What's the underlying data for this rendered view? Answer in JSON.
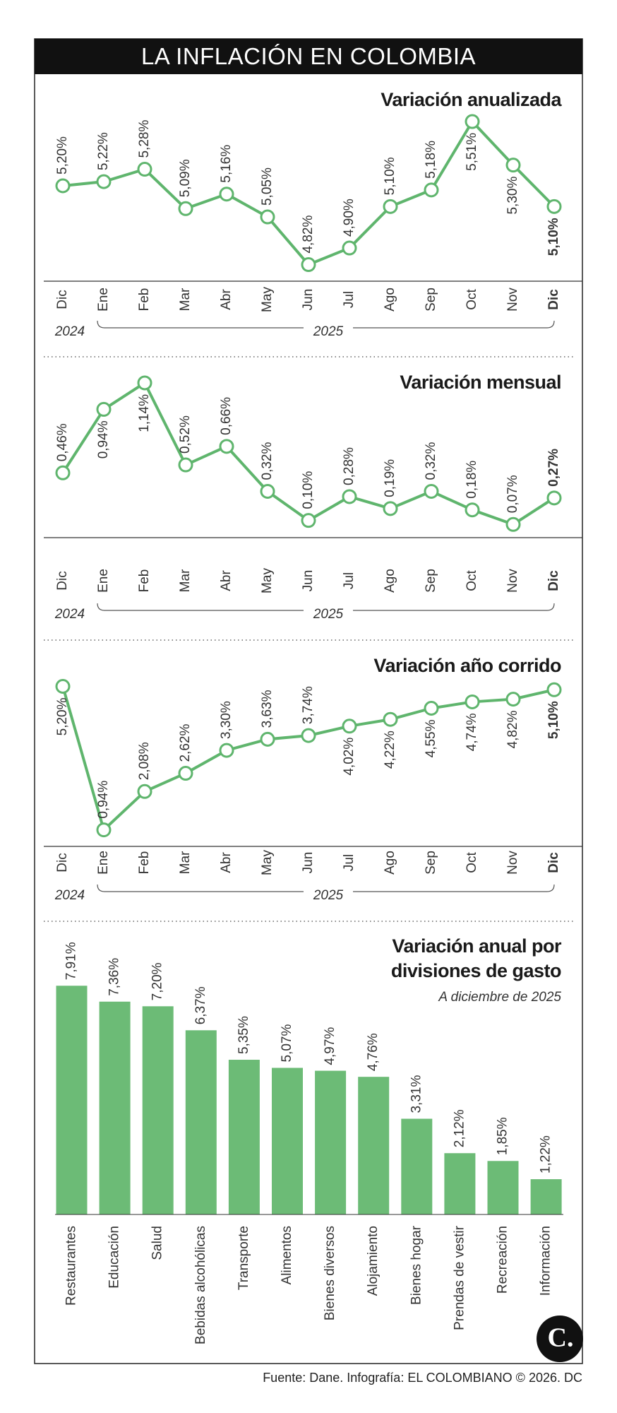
{
  "header": {
    "title": "LA INFLACIÓN EN COLOMBIA"
  },
  "chart_data": [
    {
      "type": "line",
      "title": "Variación anualizada",
      "categories": [
        "Dic",
        "Ene",
        "Feb",
        "Mar",
        "Abr",
        "May",
        "Jun",
        "Jul",
        "Ago",
        "Sep",
        "Oct",
        "Nov",
        "Dic"
      ],
      "x_group_labels": [
        "2024",
        "2025"
      ],
      "values": [
        5.2,
        5.22,
        5.28,
        5.09,
        5.16,
        5.05,
        4.82,
        4.9,
        5.1,
        5.18,
        5.51,
        5.3,
        5.1
      ],
      "value_labels": [
        "5,20%",
        "5,22%",
        "5,28%",
        "5,09%",
        "5,16%",
        "5,05%",
        "4,82%",
        "4,90%",
        "5,10%",
        "5,18%",
        "5,51%",
        "5,30%",
        "5,10%"
      ],
      "color": "#5fb56d",
      "ylim": [
        4.74,
        5.66
      ]
    },
    {
      "type": "line",
      "title": "Variación mensual",
      "categories": [
        "Dic",
        "Ene",
        "Feb",
        "Mar",
        "Abr",
        "May",
        "Jun",
        "Jul",
        "Ago",
        "Sep",
        "Oct",
        "Nov",
        "Dic"
      ],
      "x_group_labels": [
        "2024",
        "2025"
      ],
      "values": [
        0.46,
        0.94,
        1.14,
        0.52,
        0.66,
        0.32,
        0.1,
        0.28,
        0.19,
        0.32,
        0.18,
        0.07,
        0.27
      ],
      "value_labels": [
        "0,46%",
        "0,94%",
        "1,14%",
        "0,52%",
        "0,66%",
        "0,32%",
        "0,10%",
        "0,28%",
        "0,19%",
        "0,32%",
        "0,18%",
        "0,07%",
        "0,27%"
      ],
      "color": "#5fb56d",
      "ylim": [
        -0.03,
        1.22
      ]
    },
    {
      "type": "line",
      "title": "Variación año corrido",
      "categories": [
        "Dic",
        "Ene",
        "Feb",
        "Mar",
        "Abr",
        "May",
        "Jun",
        "Jul",
        "Ago",
        "Sep",
        "Oct",
        "Nov",
        "Dic"
      ],
      "x_group_labels": [
        "2024",
        "2025"
      ],
      "values": [
        5.2,
        0.94,
        2.08,
        2.62,
        3.3,
        3.63,
        3.74,
        4.02,
        4.22,
        4.55,
        4.74,
        4.82,
        5.1
      ],
      "value_labels": [
        "5,20%",
        "0,94%",
        "2,08%",
        "2,62%",
        "3,30%",
        "3,63%",
        "3,74%",
        "4,02%",
        "4,22%",
        "4,55%",
        "4,74%",
        "4,82%",
        "5,10%"
      ],
      "color": "#5fb56d",
      "ylim": [
        0.45,
        5.63
      ]
    },
    {
      "type": "bar",
      "title": "Variación anual por divisiones de gasto",
      "subtitle": "A diciembre de 2025",
      "categories": [
        "Restaurantes",
        "Educación",
        "Salud",
        "Bebidas alcohólicas",
        "Transporte",
        "Alimentos",
        "Bienes diversos",
        "Alojamiento",
        "Bienes hogar",
        "Prendas de vestir",
        "Recreación",
        "Información"
      ],
      "values": [
        7.91,
        7.36,
        7.2,
        6.37,
        5.35,
        5.07,
        4.97,
        4.76,
        3.31,
        2.12,
        1.85,
        1.22
      ],
      "value_labels": [
        "7,91%",
        "7,36%",
        "7,20%",
        "6,37%",
        "5,35%",
        "5,07%",
        "4,97%",
        "4,76%",
        "3,31%",
        "2,12%",
        "1,85%",
        "1,22%"
      ],
      "color": "#6cbb76",
      "ylim": [
        0,
        8.6
      ]
    }
  ],
  "footer": {
    "source": "Fuente: Dane. Infografía: EL COLOMBIANO © 2026. DC",
    "logo": "C."
  }
}
